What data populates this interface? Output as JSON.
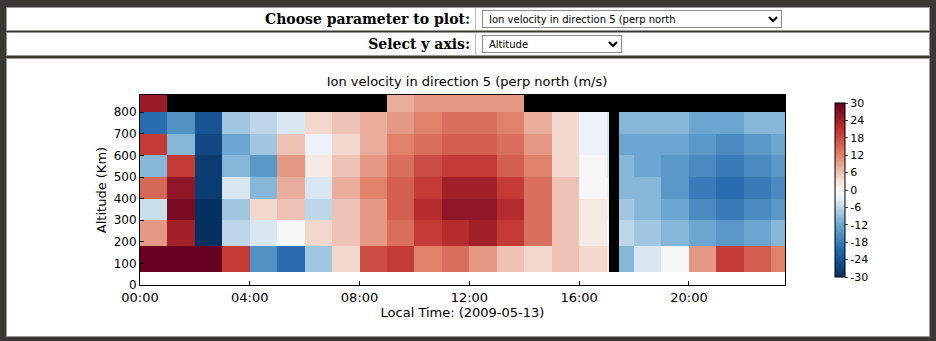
{
  "controls": [
    {
      "label": "Choose parameter to plot:",
      "value": "Ion velocity in direction 5 (perp north"
    },
    {
      "label": "Select y axis:",
      "value": "Altitude"
    }
  ],
  "chart_data": {
    "type": "heatmap",
    "title": "Ion velocity in direction 5 (perp north (m/s)",
    "x_label": "Local Time: (2009-05-13)",
    "y_label": "Altitude (Km)",
    "xlim": [
      0,
      23.5
    ],
    "xticks": [
      {
        "value": 0,
        "label": "00:00"
      },
      {
        "value": 4,
        "label": "04:00"
      },
      {
        "value": 8,
        "label": "08:00"
      },
      {
        "value": 12,
        "label": "12:00"
      },
      {
        "value": 16,
        "label": "16:00"
      },
      {
        "value": 20,
        "label": "20:00"
      }
    ],
    "ylim": [
      0,
      880
    ],
    "yticks": [
      0,
      100,
      200,
      300,
      400,
      500,
      600,
      700,
      800
    ],
    "x_edges": [
      0,
      1,
      2,
      3,
      4,
      5,
      6,
      7,
      8,
      9,
      10,
      11,
      12,
      13,
      14,
      15,
      16,
      17,
      17.1,
      17.45,
      18,
      19,
      20,
      21,
      22,
      23,
      23.5
    ],
    "y_edges": [
      60,
      180,
      300,
      400,
      500,
      600,
      700,
      800,
      880
    ],
    "z": [
      [
        30,
        30,
        30,
        20,
        -15,
        -20,
        -8,
        4,
        18,
        20,
        12,
        14,
        10,
        6,
        4,
        6,
        4,
        2,
        null,
        -10,
        -4,
        0,
        10,
        20,
        16,
        12
      ],
      [
        10,
        24,
        -30,
        -6,
        -4,
        0,
        4,
        6,
        10,
        14,
        20,
        22,
        24,
        20,
        14,
        6,
        2,
        0,
        null,
        -6,
        -8,
        -10,
        -12,
        -14,
        -12,
        -10
      ],
      [
        -5,
        28,
        -30,
        -8,
        4,
        6,
        -6,
        6,
        10,
        16,
        22,
        26,
        26,
        22,
        14,
        6,
        2,
        -2,
        null,
        -8,
        -10,
        -12,
        -16,
        -18,
        -16,
        -14
      ],
      [
        15,
        26,
        -28,
        -4,
        -10,
        8,
        -4,
        8,
        12,
        16,
        20,
        24,
        24,
        20,
        14,
        6,
        0,
        -2,
        null,
        -10,
        -10,
        -14,
        -18,
        -20,
        -18,
        -16
      ],
      [
        -10,
        20,
        -28,
        -10,
        -14,
        10,
        2,
        6,
        10,
        14,
        18,
        20,
        20,
        16,
        12,
        4,
        0,
        -4,
        null,
        -10,
        -12,
        -14,
        -16,
        -18,
        -16,
        -14
      ],
      [
        20,
        -10,
        -26,
        -12,
        -8,
        6,
        -2,
        4,
        8,
        12,
        14,
        16,
        16,
        14,
        10,
        4,
        -2,
        -4,
        null,
        -12,
        -12,
        -12,
        -14,
        -16,
        -14,
        -12
      ],
      [
        -20,
        -15,
        -24,
        -8,
        -6,
        -4,
        4,
        6,
        8,
        10,
        12,
        14,
        14,
        12,
        8,
        4,
        -2,
        -4,
        null,
        -10,
        -10,
        -10,
        -12,
        -12,
        -10,
        -10
      ],
      [
        25,
        null,
        null,
        null,
        null,
        null,
        null,
        null,
        null,
        8,
        10,
        10,
        10,
        10,
        null,
        null,
        null,
        null,
        null,
        null,
        null,
        null,
        null,
        null,
        null,
        null
      ]
    ],
    "colorbar": {
      "range": [
        -30,
        30
      ],
      "ticks": [
        -30,
        -24,
        -18,
        -12,
        -6,
        0,
        6,
        12,
        18,
        24,
        30
      ]
    }
  }
}
